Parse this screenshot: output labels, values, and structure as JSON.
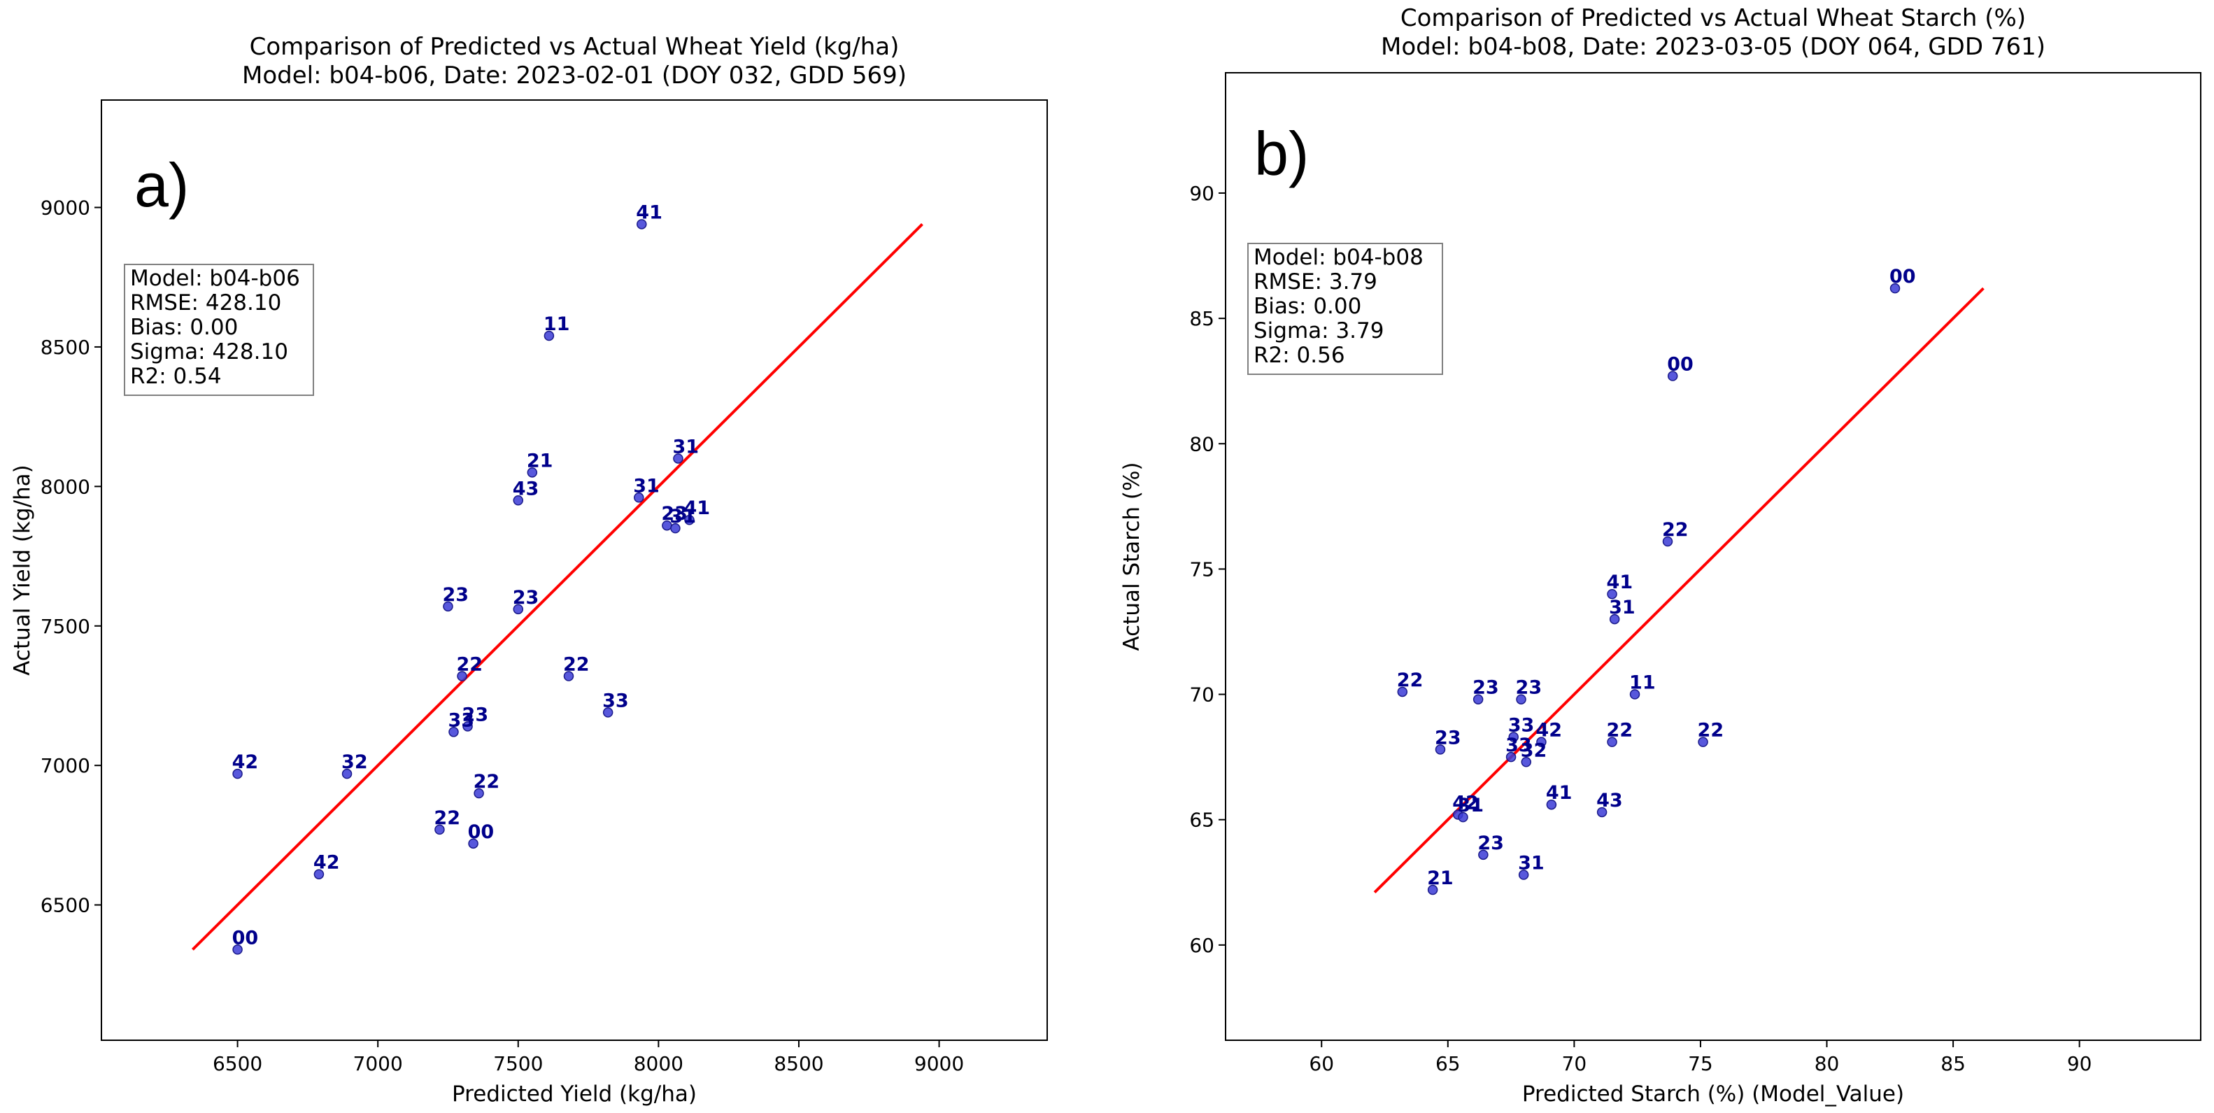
{
  "chart_data": [
    {
      "type": "scatter",
      "panel_label": "a)",
      "title_lines": [
        "Comparison of Predicted vs Actual Wheat Yield (kg/ha)",
        "Model: b04-b06, Date: 2023-02-01 (DOY 032, GDD 569)"
      ],
      "xlabel": "Predicted Yield (kg/ha)",
      "ylabel": "Actual Yield (kg/ha)",
      "xlim": [
        6015,
        9385
      ],
      "ylim": [
        6015,
        9385
      ],
      "xticks": [
        6500,
        7000,
        7500,
        8000,
        8500,
        9000
      ],
      "yticks": [
        6500,
        7000,
        7500,
        8000,
        8500,
        9000
      ],
      "fit_line": {
        "x": [
          6340,
          8940
        ],
        "y": [
          6340,
          8940
        ],
        "color": "#ff0000"
      },
      "stats_box": [
        "Model: b04-b06",
        "RMSE: 428.10",
        "Bias: 0.00",
        "Sigma: 428.10",
        "R2: 0.54"
      ],
      "point_color": "#3b3bd6",
      "label_color": "#00008b",
      "points": [
        {
          "x": 7940,
          "y": 8940,
          "label": "41"
        },
        {
          "x": 7610,
          "y": 8540,
          "label": "11"
        },
        {
          "x": 7550,
          "y": 8050,
          "label": "21"
        },
        {
          "x": 7500,
          "y": 7950,
          "label": "43"
        },
        {
          "x": 7930,
          "y": 7960,
          "label": "31"
        },
        {
          "x": 8070,
          "y": 8100,
          "label": "31"
        },
        {
          "x": 8030,
          "y": 7860,
          "label": "23"
        },
        {
          "x": 8110,
          "y": 7880,
          "label": "41"
        },
        {
          "x": 8060,
          "y": 7850,
          "label": "31"
        },
        {
          "x": 7250,
          "y": 7570,
          "label": "23"
        },
        {
          "x": 7500,
          "y": 7560,
          "label": "23"
        },
        {
          "x": 7300,
          "y": 7320,
          "label": "22"
        },
        {
          "x": 7680,
          "y": 7320,
          "label": "22"
        },
        {
          "x": 7820,
          "y": 7190,
          "label": "33"
        },
        {
          "x": 7320,
          "y": 7140,
          "label": "23"
        },
        {
          "x": 7270,
          "y": 7120,
          "label": "33"
        },
        {
          "x": 6500,
          "y": 6970,
          "label": "42"
        },
        {
          "x": 6890,
          "y": 6970,
          "label": "32"
        },
        {
          "x": 7360,
          "y": 6900,
          "label": "22"
        },
        {
          "x": 7220,
          "y": 6770,
          "label": "22"
        },
        {
          "x": 7340,
          "y": 6720,
          "label": "00"
        },
        {
          "x": 6790,
          "y": 6610,
          "label": "42"
        },
        {
          "x": 6500,
          "y": 6340,
          "label": "00"
        }
      ]
    },
    {
      "type": "scatter",
      "panel_label": "b)",
      "title_lines": [
        "Comparison of Predicted vs Actual Wheat Starch (%)",
        "Model: b04-b08, Date: 2023-03-05 (DOY 064, GDD 761)"
      ],
      "xlabel": "Predicted Starch (%) (Model_Value)",
      "ylabel": "Actual Starch (%)",
      "xlim": [
        56.2,
        94.8
      ],
      "ylim": [
        56.2,
        94.8
      ],
      "xticks": [
        60,
        65,
        70,
        75,
        80,
        85,
        90
      ],
      "yticks": [
        60,
        65,
        70,
        75,
        80,
        85,
        90
      ],
      "fit_line": {
        "x": [
          62.1,
          86.2
        ],
        "y": [
          62.1,
          86.2
        ],
        "color": "#ff0000"
      },
      "stats_box": [
        "Model: b04-b08",
        "RMSE: 3.79",
        "Bias: 0.00",
        "Sigma: 3.79",
        "R2: 0.56"
      ],
      "point_color": "#3b3bd6",
      "label_color": "#00008b",
      "points": [
        {
          "x": 82.7,
          "y": 86.2,
          "label": "00"
        },
        {
          "x": 73.9,
          "y": 82.7,
          "label": "00"
        },
        {
          "x": 73.7,
          "y": 76.1,
          "label": "22"
        },
        {
          "x": 71.5,
          "y": 74.0,
          "label": "41"
        },
        {
          "x": 71.6,
          "y": 73.0,
          "label": "31"
        },
        {
          "x": 63.2,
          "y": 70.1,
          "label": "22"
        },
        {
          "x": 66.2,
          "y": 69.8,
          "label": "23"
        },
        {
          "x": 67.9,
          "y": 69.8,
          "label": "23"
        },
        {
          "x": 72.4,
          "y": 70.0,
          "label": "11"
        },
        {
          "x": 64.7,
          "y": 67.8,
          "label": "23"
        },
        {
          "x": 67.6,
          "y": 68.3,
          "label": "33"
        },
        {
          "x": 68.7,
          "y": 68.1,
          "label": "42"
        },
        {
          "x": 71.5,
          "y": 68.1,
          "label": "22"
        },
        {
          "x": 75.1,
          "y": 68.1,
          "label": "22"
        },
        {
          "x": 67.5,
          "y": 67.5,
          "label": "33"
        },
        {
          "x": 68.1,
          "y": 67.3,
          "label": "32"
        },
        {
          "x": 65.4,
          "y": 65.2,
          "label": "42"
        },
        {
          "x": 65.6,
          "y": 65.1,
          "label": "31"
        },
        {
          "x": 69.1,
          "y": 65.6,
          "label": "41"
        },
        {
          "x": 71.1,
          "y": 65.3,
          "label": "43"
        },
        {
          "x": 66.4,
          "y": 63.6,
          "label": "23"
        },
        {
          "x": 68.0,
          "y": 62.8,
          "label": "31"
        },
        {
          "x": 64.4,
          "y": 62.2,
          "label": "21"
        }
      ]
    }
  ]
}
